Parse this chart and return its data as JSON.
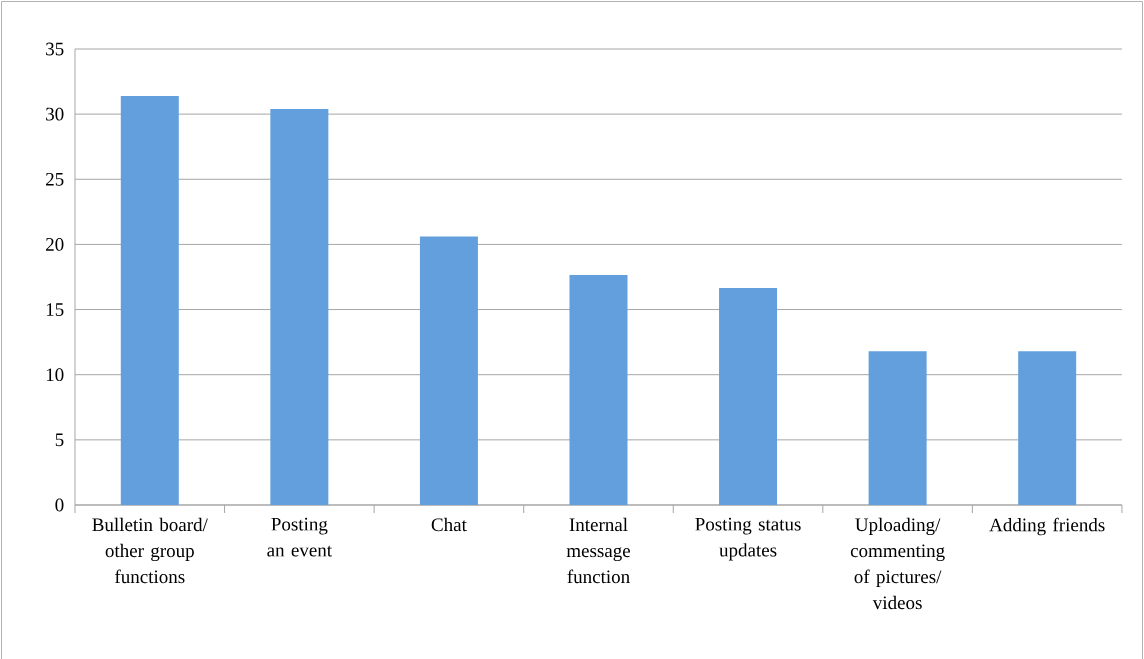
{
  "chart_data": {
    "type": "bar",
    "categories": [
      "Bulletin board/ other group functions",
      "Posting an event",
      "Chat",
      "Internal message function",
      "Posting status updates",
      "Uploading/ commenting of pictures/ videos",
      "Adding friends"
    ],
    "values": [
      31.4,
      30.4,
      20.6,
      17.65,
      16.65,
      11.8,
      11.8
    ],
    "color": "#629fdc",
    "ylim": [
      0,
      35
    ],
    "yticks": [
      0,
      5,
      10,
      15,
      20,
      25,
      30,
      35
    ],
    "grid": "y"
  }
}
